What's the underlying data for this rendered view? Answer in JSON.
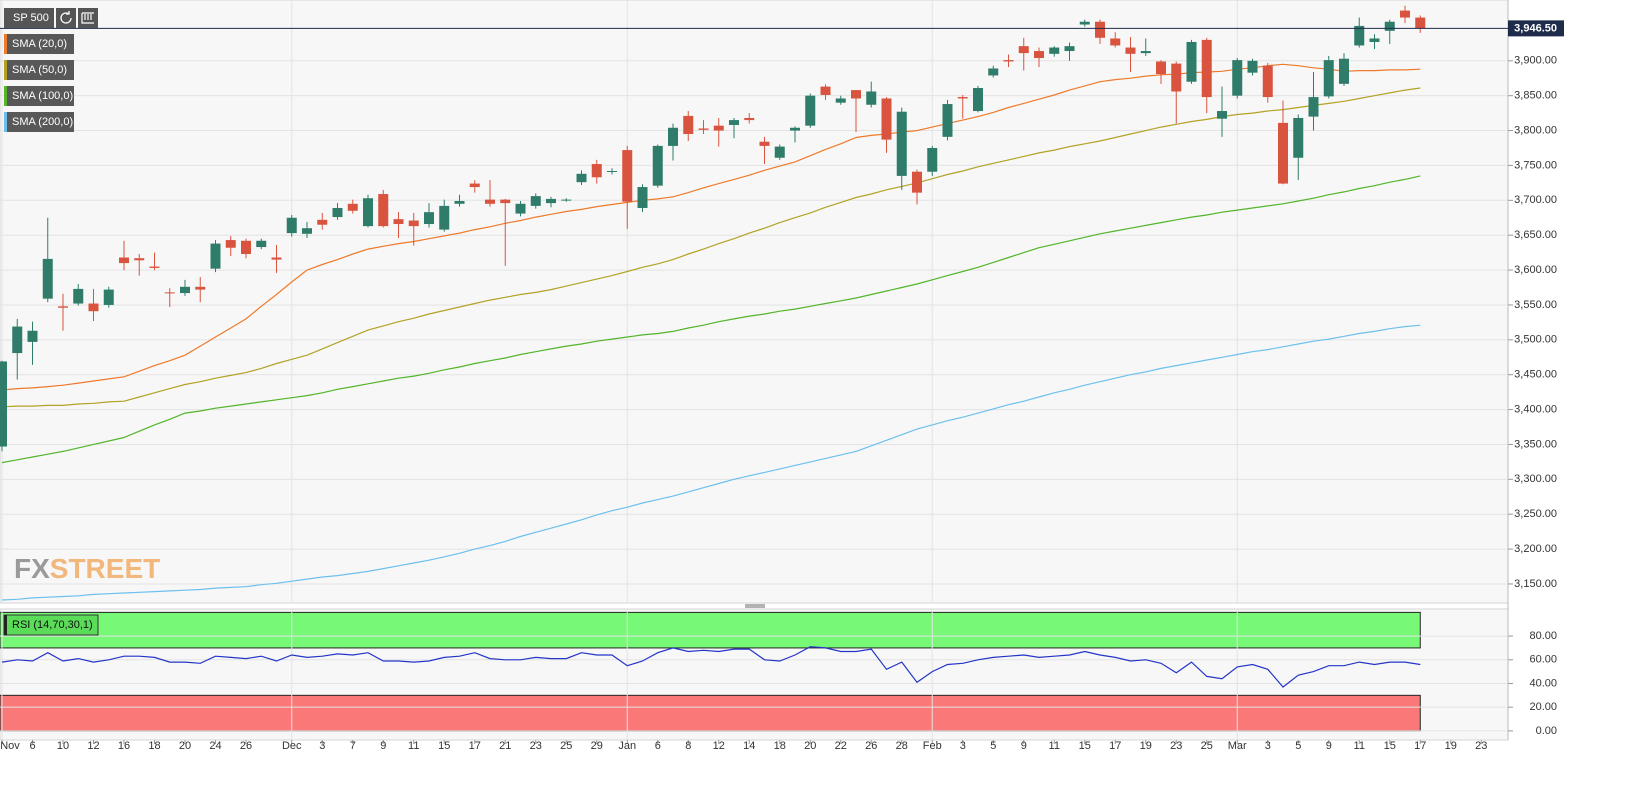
{
  "chart_data": [
    {
      "type": "candlestick",
      "title": "SP 500",
      "categories": [
        "Nov",
        null,
        "6",
        null,
        "10",
        null,
        "12",
        null,
        "16",
        null,
        "18",
        null,
        "20",
        null,
        "24",
        null,
        "26",
        null,
        null,
        "Dec",
        null,
        "3",
        null,
        "7",
        null,
        "9",
        null,
        "11",
        null,
        "15",
        null,
        "17",
        null,
        "21",
        null,
        "23",
        null,
        "25",
        null,
        "29",
        null,
        "Jan",
        null,
        "6",
        null,
        "8",
        null,
        "12",
        null,
        "14",
        null,
        "18",
        null,
        "20",
        null,
        "22",
        null,
        "26",
        null,
        "28",
        null,
        "Feb",
        null,
        "3",
        null,
        "5",
        null,
        "9",
        null,
        "11",
        null,
        "15",
        null,
        "17",
        null,
        "19",
        null,
        "23",
        null,
        "25",
        null,
        "Mar",
        null,
        "3",
        null,
        "5",
        null,
        "9",
        null,
        "11",
        null,
        "15",
        null,
        "17",
        null,
        "19",
        null,
        "23",
        null
      ],
      "open": [
        3347,
        3481,
        3497,
        3559,
        3548,
        3552,
        3552,
        3550,
        3618,
        3617,
        3605,
        3568,
        3567,
        3576,
        3602,
        3643,
        3642,
        3633,
        3618,
        3653,
        3652,
        3672,
        3676,
        3695,
        3663,
        3709,
        3673,
        3671,
        3666,
        3658,
        3695,
        3724,
        3701,
        3701,
        3681,
        3692,
        3696,
        3700,
        3726,
        3752,
        3741,
        3772,
        3689,
        3721,
        3778,
        3821,
        3803,
        3807,
        3808,
        3818,
        3784,
        3761,
        3800,
        3807,
        3863,
        3840,
        3858,
        3837,
        3846,
        3735,
        3741,
        3741,
        3791,
        3848,
        3828,
        3879,
        3901,
        3921,
        3914,
        3910,
        3914,
        3952,
        3956,
        3932,
        3919,
        3911,
        3899,
        3896,
        3870,
        3930,
        3817,
        3850,
        3883,
        3893,
        3811,
        3761,
        3820,
        3849,
        3867,
        3922,
        3927,
        3943,
        3972,
        3962,
        null,
        null,
        null,
        null,
        null
      ],
      "high": [
        3470,
        3530,
        3526,
        3675,
        3566,
        3580,
        3573,
        3576,
        3642,
        3623,
        3625,
        3574,
        3586,
        3590,
        3643,
        3649,
        3645,
        3645,
        3636,
        3679,
        3669,
        3682,
        3696,
        3701,
        3708,
        3715,
        3683,
        3682,
        3696,
        3701,
        3708,
        3729,
        3729,
        3702,
        3699,
        3710,
        3705,
        3703,
        3743,
        3758,
        3746,
        3778,
        3723,
        3780,
        3810,
        3828,
        3815,
        3818,
        3818,
        3825,
        3791,
        3780,
        3806,
        3853,
        3866,
        3850,
        3858,
        3870,
        3848,
        3833,
        3744,
        3778,
        3844,
        3851,
        3864,
        3893,
        3909,
        3933,
        3919,
        3921,
        3926,
        3959,
        3959,
        3941,
        3934,
        3932,
        3901,
        3899,
        3930,
        3933,
        3863,
        3904,
        3903,
        3897,
        3843,
        3823,
        3884,
        3907,
        3911,
        3962,
        3938,
        3959,
        3979,
        3965,
        null,
        null,
        null,
        null,
        null
      ],
      "low": [
        3340,
        3443,
        3464,
        3554,
        3513,
        3549,
        3527,
        3546,
        3600,
        3592,
        3600,
        3547,
        3563,
        3554,
        3597,
        3620,
        3617,
        3630,
        3596,
        3648,
        3646,
        3658,
        3672,
        3681,
        3661,
        3661,
        3646,
        3635,
        3661,
        3655,
        3691,
        3711,
        3691,
        3606,
        3677,
        3688,
        3690,
        3698,
        3722,
        3724,
        3737,
        3659,
        3683,
        3718,
        3757,
        3785,
        3795,
        3777,
        3789,
        3810,
        3752,
        3758,
        3783,
        3804,
        3844,
        3837,
        3798,
        3833,
        3768,
        3715,
        3694,
        3735,
        3786,
        3817,
        3826,
        3876,
        3891,
        3886,
        3891,
        3906,
        3900,
        3949,
        3924,
        3919,
        3884,
        3907,
        3867,
        3810,
        3867,
        3825,
        3791,
        3846,
        3879,
        3840,
        3723,
        3729,
        3800,
        3846,
        3864,
        3919,
        3917,
        3924,
        3954,
        3940,
        null,
        null,
        null,
        null,
        null
      ],
      "close": [
        3469,
        3519,
        3513,
        3616,
        3546,
        3573,
        3541,
        3572,
        3610,
        3614,
        3603,
        3567,
        3576,
        3572,
        3638,
        3632,
        3623,
        3642,
        3615,
        3675,
        3660,
        3665,
        3689,
        3685,
        3703,
        3663,
        3666,
        3663,
        3683,
        3692,
        3699,
        3719,
        3695,
        3696,
        3695,
        3706,
        3702,
        3701,
        3738,
        3733,
        3742,
        3698,
        3719,
        3778,
        3804,
        3795,
        3801,
        3800,
        3815,
        3815,
        3778,
        3777,
        3804,
        3850,
        3851,
        3846,
        3846,
        3856,
        3787,
        3827,
        3711,
        3775,
        3838,
        3846,
        3861,
        3889,
        3899,
        3911,
        3904,
        3919,
        3921,
        3956,
        3933,
        3922,
        3910,
        3914,
        3881,
        3856,
        3927,
        3848,
        3828,
        3901,
        3900,
        3848,
        3724,
        3818,
        3848,
        3901,
        3903,
        3950,
        3932,
        3956,
        3962,
        3946.5,
        null,
        null,
        null,
        null,
        null
      ],
      "up_color": "#2e7c69",
      "down_color": "#d9543f",
      "series": [
        {
          "name": "SMA (20,0)",
          "color": "#ee7a2b",
          "values": [
            3428,
            3430,
            3431,
            3433,
            3435,
            3438,
            3441,
            3444,
            3447,
            3455,
            3463,
            3470,
            3478,
            3491,
            3504,
            3517,
            3530,
            3548,
            3565,
            3583,
            3600,
            3608,
            3615,
            3623,
            3630,
            3634,
            3638,
            3641,
            3645,
            3649,
            3653,
            3658,
            3662,
            3667,
            3671,
            3676,
            3680,
            3684,
            3687,
            3691,
            3694,
            3697,
            3700,
            3702,
            3705,
            3711,
            3718,
            3724,
            3730,
            3736,
            3743,
            3749,
            3755,
            3764,
            3773,
            3781,
            3790,
            3793,
            3795,
            3798,
            3800,
            3805,
            3810,
            3815,
            3820,
            3826,
            3833,
            3839,
            3845,
            3851,
            3858,
            3864,
            3870,
            3873,
            3875,
            3878,
            3880,
            3881,
            3883,
            3884,
            3885,
            3888,
            3890,
            3893,
            3895,
            3893,
            3890,
            3888,
            3885,
            3886,
            3886,
            3887,
            3887,
            3888,
            null,
            null,
            null,
            null,
            null
          ]
        },
        {
          "name": "SMA (50,0)",
          "color": "#b3a226",
          "values": [
            3404,
            3405,
            3405,
            3406,
            3406,
            3408,
            3409,
            3411,
            3412,
            3418,
            3424,
            3430,
            3436,
            3440,
            3445,
            3449,
            3453,
            3459,
            3466,
            3472,
            3478,
            3487,
            3496,
            3505,
            3514,
            3520,
            3526,
            3531,
            3537,
            3542,
            3547,
            3552,
            3557,
            3561,
            3565,
            3568,
            3572,
            3577,
            3582,
            3587,
            3592,
            3598,
            3604,
            3609,
            3615,
            3623,
            3630,
            3638,
            3645,
            3653,
            3660,
            3668,
            3675,
            3682,
            3690,
            3697,
            3704,
            3709,
            3715,
            3720,
            3725,
            3731,
            3737,
            3742,
            3748,
            3753,
            3758,
            3763,
            3768,
            3772,
            3777,
            3781,
            3785,
            3790,
            3795,
            3800,
            3805,
            3809,
            3813,
            3816,
            3820,
            3823,
            3825,
            3828,
            3830,
            3833,
            3836,
            3839,
            3842,
            3846,
            3850,
            3854,
            3858,
            3861,
            null,
            null,
            null,
            null,
            null
          ]
        },
        {
          "name": "SMA (100,0)",
          "color": "#52b52a",
          "values": [
            3324,
            3328,
            3332,
            3336,
            3340,
            3345,
            3350,
            3355,
            3360,
            3369,
            3378,
            3386,
            3395,
            3398,
            3402,
            3405,
            3408,
            3411,
            3414,
            3417,
            3420,
            3424,
            3429,
            3433,
            3437,
            3441,
            3445,
            3448,
            3452,
            3457,
            3461,
            3466,
            3470,
            3474,
            3479,
            3483,
            3487,
            3491,
            3494,
            3498,
            3501,
            3504,
            3507,
            3509,
            3512,
            3517,
            3521,
            3526,
            3530,
            3534,
            3537,
            3541,
            3544,
            3548,
            3552,
            3556,
            3560,
            3565,
            3570,
            3575,
            3580,
            3586,
            3592,
            3598,
            3604,
            3611,
            3618,
            3625,
            3632,
            3637,
            3642,
            3647,
            3652,
            3656,
            3660,
            3664,
            3668,
            3672,
            3676,
            3679,
            3683,
            3686,
            3689,
            3692,
            3695,
            3699,
            3703,
            3708,
            3712,
            3717,
            3721,
            3726,
            3730,
            3735,
            null,
            null,
            null,
            null,
            null
          ]
        },
        {
          "name": "SMA (200,0)",
          "color": "#6cc0ee",
          "values": [
            3127,
            3128,
            3130,
            3131,
            3132,
            3133,
            3135,
            3136,
            3137,
            3138,
            3139,
            3140,
            3141,
            3142,
            3144,
            3145,
            3146,
            3149,
            3151,
            3154,
            3157,
            3160,
            3162,
            3165,
            3168,
            3172,
            3176,
            3180,
            3184,
            3189,
            3194,
            3200,
            3205,
            3211,
            3218,
            3224,
            3230,
            3236,
            3242,
            3249,
            3255,
            3260,
            3266,
            3271,
            3276,
            3282,
            3288,
            3294,
            3300,
            3305,
            3310,
            3315,
            3320,
            3325,
            3330,
            3335,
            3340,
            3348,
            3356,
            3364,
            3372,
            3378,
            3384,
            3389,
            3395,
            3401,
            3407,
            3412,
            3418,
            3424,
            3429,
            3435,
            3440,
            3445,
            3450,
            3454,
            3459,
            3463,
            3467,
            3471,
            3475,
            3479,
            3483,
            3486,
            3490,
            3494,
            3498,
            3501,
            3505,
            3509,
            3512,
            3516,
            3519,
            3521,
            null,
            null,
            null,
            null,
            null
          ]
        }
      ],
      "ylim": [
        3127,
        3980
      ],
      "yticks": [
        {
          "value": 3150,
          "label": "3,150.00"
        },
        {
          "value": 3200,
          "label": "3,200.00"
        },
        {
          "value": 3250,
          "label": "3,250.00"
        },
        {
          "value": 3300,
          "label": "3,300.00"
        },
        {
          "value": 3350,
          "label": "3,350.00"
        },
        {
          "value": 3400,
          "label": "3,400.00"
        },
        {
          "value": 3450,
          "label": "3,450.00"
        },
        {
          "value": 3500,
          "label": "3,500.00"
        },
        {
          "value": 3550,
          "label": "3,550.00"
        },
        {
          "value": 3600,
          "label": "3,600.00"
        },
        {
          "value": 3650,
          "label": "3,650.00"
        },
        {
          "value": 3700,
          "label": "3,700.00"
        },
        {
          "value": 3750,
          "label": "3,750.00"
        },
        {
          "value": 3800,
          "label": "3,800.00"
        },
        {
          "value": 3850,
          "label": "3,850.00"
        },
        {
          "value": 3900,
          "label": "3,900.00"
        }
      ],
      "last_price": {
        "value": 3946.5,
        "label": "3,946.50"
      },
      "grid": true,
      "watermark": [
        "FX",
        "STREET"
      ]
    },
    {
      "type": "line",
      "series": [
        {
          "name": "RSI (14,70,30,1)",
          "color": "#2434c8",
          "values": [
            58,
            60,
            59,
            66,
            59,
            61,
            58,
            60,
            63,
            63,
            62,
            58,
            58,
            57,
            63,
            62,
            61,
            63,
            59,
            64,
            62,
            63,
            65,
            64,
            66,
            59,
            59,
            58,
            59,
            62,
            63,
            66,
            61,
            60,
            60,
            62,
            61,
            61,
            66,
            64,
            64,
            55,
            59,
            66,
            70,
            67,
            68,
            67,
            69,
            69,
            60,
            59,
            64,
            71,
            70,
            67,
            67,
            69,
            52,
            58,
            41,
            50,
            56,
            57,
            60,
            62,
            63,
            64,
            62,
            63,
            64,
            67,
            64,
            62,
            59,
            60,
            57,
            49,
            58,
            46,
            44,
            54,
            56,
            52,
            37,
            47,
            50,
            55,
            55,
            58,
            56,
            58,
            58,
            56,
            null,
            null,
            null,
            null,
            null
          ]
        }
      ],
      "ylim": [
        -6,
        102
      ],
      "yticks": [
        {
          "value": 0,
          "label": "0.00"
        },
        {
          "value": 20,
          "label": "20.00"
        },
        {
          "value": 40,
          "label": "40.00"
        },
        {
          "value": 60,
          "label": "60.00"
        },
        {
          "value": 80,
          "label": "80.00"
        }
      ],
      "bands": [
        {
          "from": 70,
          "to": 100,
          "color": "#77f977"
        },
        {
          "from": 0,
          "to": 30,
          "color": "#fa7878"
        }
      ],
      "grid": true
    }
  ]
}
